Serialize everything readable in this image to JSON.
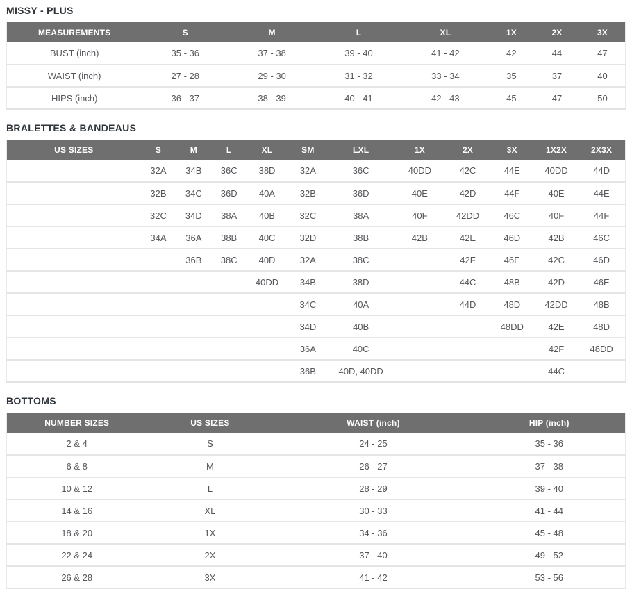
{
  "colors": {
    "header_bg": "#706f6f",
    "header_text": "#ffffff",
    "title_text": "#2e343a",
    "cell_text": "#55565a",
    "row_border": "#e5e5e5",
    "page_bg": "#ffffff"
  },
  "tables": [
    {
      "title": "MISSY - PLUS",
      "columns": [
        "MEASUREMENTS",
        "S",
        "M",
        "L",
        "XL",
        "1X",
        "2X",
        "3X"
      ],
      "col_widths": [
        "21.9%",
        "14.0%",
        "14.0%",
        "14.0%",
        "14.0%",
        "7.3%",
        "7.4%",
        "7.4%"
      ],
      "rows": [
        [
          "BUST (inch)",
          "35 - 36",
          "37 - 38",
          "39 - 40",
          "41 - 42",
          "42",
          "44",
          "47"
        ],
        [
          "WAIST (inch)",
          "27 - 28",
          "29 - 30",
          "31 - 32",
          "33 - 34",
          "35",
          "37",
          "40"
        ],
        [
          "HIPS (inch)",
          "36 - 37",
          "38 - 39",
          "40 - 41",
          "42 - 43",
          "45",
          "47",
          "50"
        ]
      ]
    },
    {
      "title": "BRALETTES & BANDEAUS",
      "columns": [
        "US SIZES",
        "S",
        "M",
        "L",
        "XL",
        "SM",
        "LXL",
        "1X",
        "2X",
        "3X",
        "1X2X",
        "2X3X"
      ],
      "col_widths": [
        "21.7%",
        "5.7%",
        "5.7%",
        "5.7%",
        "6.6%",
        "6.6%",
        "10.5%",
        "8.5%",
        "7.0%",
        "7.3%",
        "7.0%",
        "7.7%"
      ],
      "rows": [
        [
          "",
          "32A",
          "34B",
          "36C",
          "38D",
          "32A",
          "36C",
          "40DD",
          "42C",
          "44E",
          "40DD",
          "44D"
        ],
        [
          "",
          "32B",
          "34C",
          "36D",
          "40A",
          "32B",
          "36D",
          "40E",
          "42D",
          "44F",
          "40E",
          "44E"
        ],
        [
          "",
          "32C",
          "34D",
          "38A",
          "40B",
          "32C",
          "38A",
          "40F",
          "42DD",
          "46C",
          "40F",
          "44F"
        ],
        [
          "",
          "34A",
          "36A",
          "38B",
          "40C",
          "32D",
          "38B",
          "42B",
          "42E",
          "46D",
          "42B",
          "46C"
        ],
        [
          "",
          "",
          "36B",
          "38C",
          "40D",
          "32A",
          "38C",
          "",
          "42F",
          "46E",
          "42C",
          "46D"
        ],
        [
          "",
          "",
          "",
          "",
          "40DD",
          "34B",
          "38D",
          "",
          "44C",
          "48B",
          "42D",
          "46E"
        ],
        [
          "",
          "",
          "",
          "",
          "",
          "34C",
          "40A",
          "",
          "44D",
          "48D",
          "42DD",
          "48B"
        ],
        [
          "",
          "",
          "",
          "",
          "",
          "34D",
          "40B",
          "",
          "",
          "48DD",
          "42E",
          "48D"
        ],
        [
          "",
          "",
          "",
          "",
          "",
          "36A",
          "40C",
          "",
          "",
          "",
          "42F",
          "48DD"
        ],
        [
          "",
          "",
          "",
          "",
          "",
          "36B",
          "40D, 40DD",
          "",
          "",
          "",
          "44C",
          ""
        ]
      ]
    },
    {
      "title": "BOTTOMS",
      "columns": [
        "NUMBER SIZES",
        "US SIZES",
        "WAIST (inch)",
        "HIP (inch)"
      ],
      "col_widths": [
        "22.7%",
        "20.4%",
        "32.3%",
        "24.6%"
      ],
      "rows": [
        [
          "2 & 4",
          "S",
          "24 - 25",
          "35 - 36"
        ],
        [
          "6 & 8",
          "M",
          "26 - 27",
          "37 - 38"
        ],
        [
          "10 & 12",
          "L",
          "28 - 29",
          "39 - 40"
        ],
        [
          "14 & 16",
          "XL",
          "30 - 33",
          "41 - 44"
        ],
        [
          "18 & 20",
          "1X",
          "34 - 36",
          "45 - 48"
        ],
        [
          "22 & 24",
          "2X",
          "37 - 40",
          "49 - 52"
        ],
        [
          "26 & 28",
          "3X",
          "41 - 42",
          "53 - 56"
        ]
      ]
    }
  ]
}
